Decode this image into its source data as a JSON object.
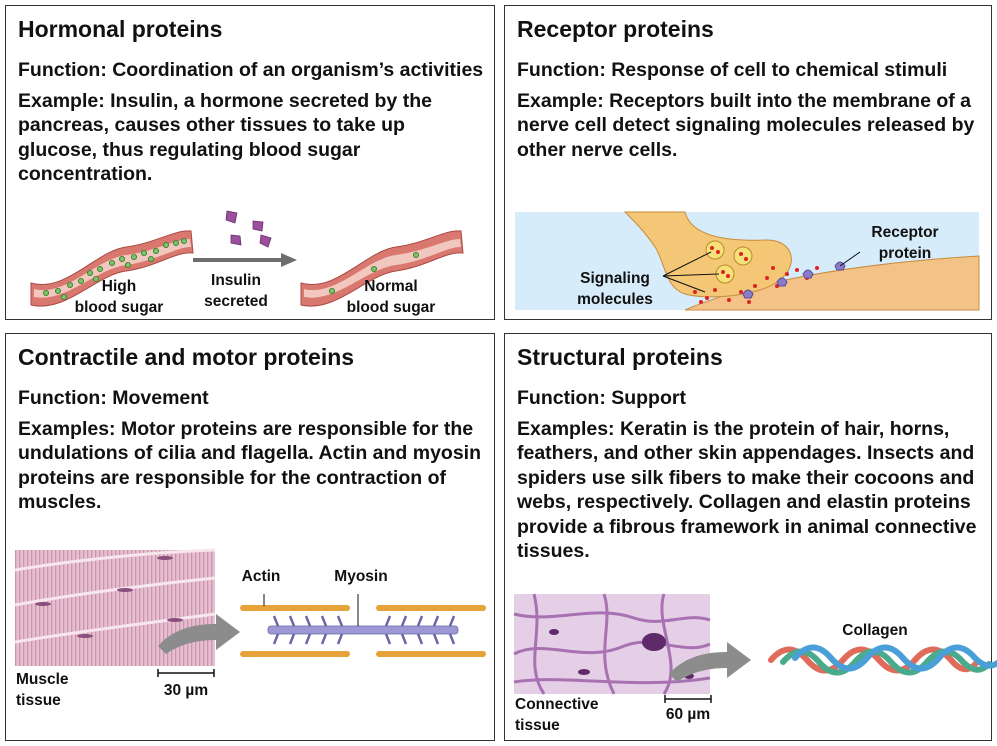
{
  "hormonal": {
    "title": "Hormonal proteins",
    "function": "Function: Coordination of an organism’s activities",
    "example": "Example: Insulin, a hormone secreted by the pancreas, causes other tissues to take up glucose, thus regulating blood sugar concentration.",
    "label_high_1": "High",
    "label_high_2": "blood sugar",
    "label_insulin_1": "Insulin",
    "label_insulin_2": "secreted",
    "label_normal_1": "Normal",
    "label_normal_2": "blood sugar"
  },
  "receptor": {
    "title": "Receptor proteins",
    "function": "Function: Response of cell to chemical stimuli",
    "example": "Example: Receptors built into the membrane of a nerve cell detect signaling molecules released by other nerve cells.",
    "label_receptor_1": "Receptor",
    "label_receptor_2": "protein",
    "label_signal_1": "Signaling",
    "label_signal_2": "molecules"
  },
  "contractile": {
    "title": "Contractile and motor proteins",
    "function": "Function: Movement",
    "example": "Examples: Motor proteins are responsible for the undulations of cilia and flagella. Actin and myosin proteins are responsible for the contraction of muscles.",
    "label_actin": "Actin",
    "label_myosin": "Myosin",
    "label_tissue_1": "Muscle",
    "label_tissue_2": "tissue",
    "scale": "30 µm"
  },
  "structural": {
    "title": "Structural proteins",
    "function": "Function: Support",
    "example": "Examples: Keratin is the protein of hair, horns, feathers, and other skin appendages. Insects and spiders use silk fibers to make their cocoons and webs, respectively. Collagen and elastin proteins provide a fibrous framework in animal connective tissues.",
    "label_collagen": "Collagen",
    "label_tissue_1": "Connective",
    "label_tissue_2": "tissue",
    "scale": "60 µm"
  },
  "colors": {
    "vessel": "#d9786e",
    "vessel_inner": "#f2c7bd",
    "glucose": "#7ac36a",
    "insulin": "#9b4f9e",
    "cell_sky": "#d6ecfb",
    "neuron": "#f4c777",
    "receptor": "#8a7cc6",
    "signal": "#e02222",
    "actin": "#e6a33a",
    "myosin": "#9d99d6",
    "arrow": "#8c8c8c",
    "muscle": "#e7bfd0",
    "connective": "#b27ab8"
  }
}
